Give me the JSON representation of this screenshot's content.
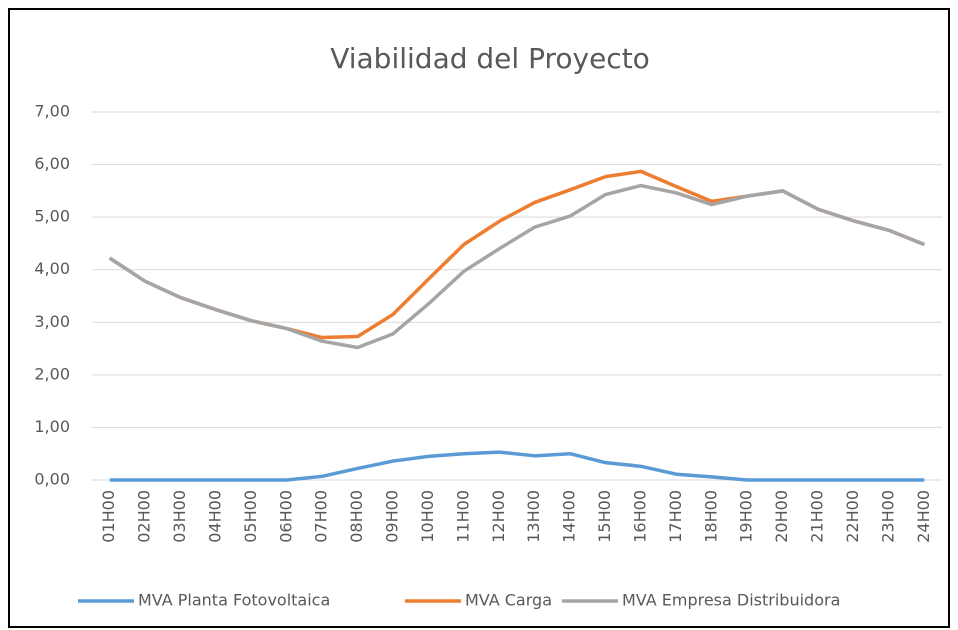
{
  "chart_data": {
    "type": "line",
    "title": "Viabilidad del Proyecto",
    "categories": [
      "01H00",
      "02H00",
      "03H00",
      "04H00",
      "05H00",
      "06H00",
      "07H00",
      "08H00",
      "09H00",
      "10H00",
      "11H00",
      "12H00",
      "13H00",
      "14H00",
      "15H00",
      "16H00",
      "17H00",
      "18H00",
      "19H00",
      "20H00",
      "21H00",
      "22H00",
      "23H00",
      "24H00"
    ],
    "series": [
      {
        "name": "MVA Planta Fotovoltaica",
        "color": "#5b9bd5",
        "values": [
          0,
          0,
          0,
          0,
          0,
          0,
          0.07,
          0.22,
          0.36,
          0.45,
          0.5,
          0.53,
          0.46,
          0.5,
          0.33,
          0.26,
          0.11,
          0.06,
          0,
          0,
          0,
          0,
          0,
          0
        ]
      },
      {
        "name": "MVA Carga",
        "color": "#ed7d31",
        "values": [
          4.22,
          3.78,
          3.47,
          3.24,
          3.03,
          2.88,
          2.71,
          2.73,
          3.15,
          3.82,
          4.48,
          4.92,
          5.28,
          5.52,
          5.77,
          5.87,
          5.58,
          5.3,
          5.4,
          5.5,
          5.15,
          4.93,
          4.75,
          4.48
        ]
      },
      {
        "name": "MVA Empresa Distribuidora",
        "color": "#a5a5a5",
        "values": [
          4.22,
          3.78,
          3.47,
          3.24,
          3.03,
          2.88,
          2.64,
          2.52,
          2.78,
          3.35,
          3.97,
          4.4,
          4.81,
          5.02,
          5.43,
          5.6,
          5.46,
          5.24,
          5.4,
          5.5,
          5.15,
          4.93,
          4.75,
          4.48
        ]
      }
    ],
    "ylim": [
      0,
      7
    ],
    "yticks": [
      {
        "value": 0,
        "label": "0,00"
      },
      {
        "value": 1,
        "label": "1,00"
      },
      {
        "value": 2,
        "label": "2,00"
      },
      {
        "value": 3,
        "label": "3,00"
      },
      {
        "value": 4,
        "label": "4,00"
      },
      {
        "value": 5,
        "label": "5,00"
      },
      {
        "value": 6,
        "label": "6,00"
      },
      {
        "value": 7,
        "label": "7,00"
      }
    ],
    "grid": true,
    "legend": "bottom"
  }
}
